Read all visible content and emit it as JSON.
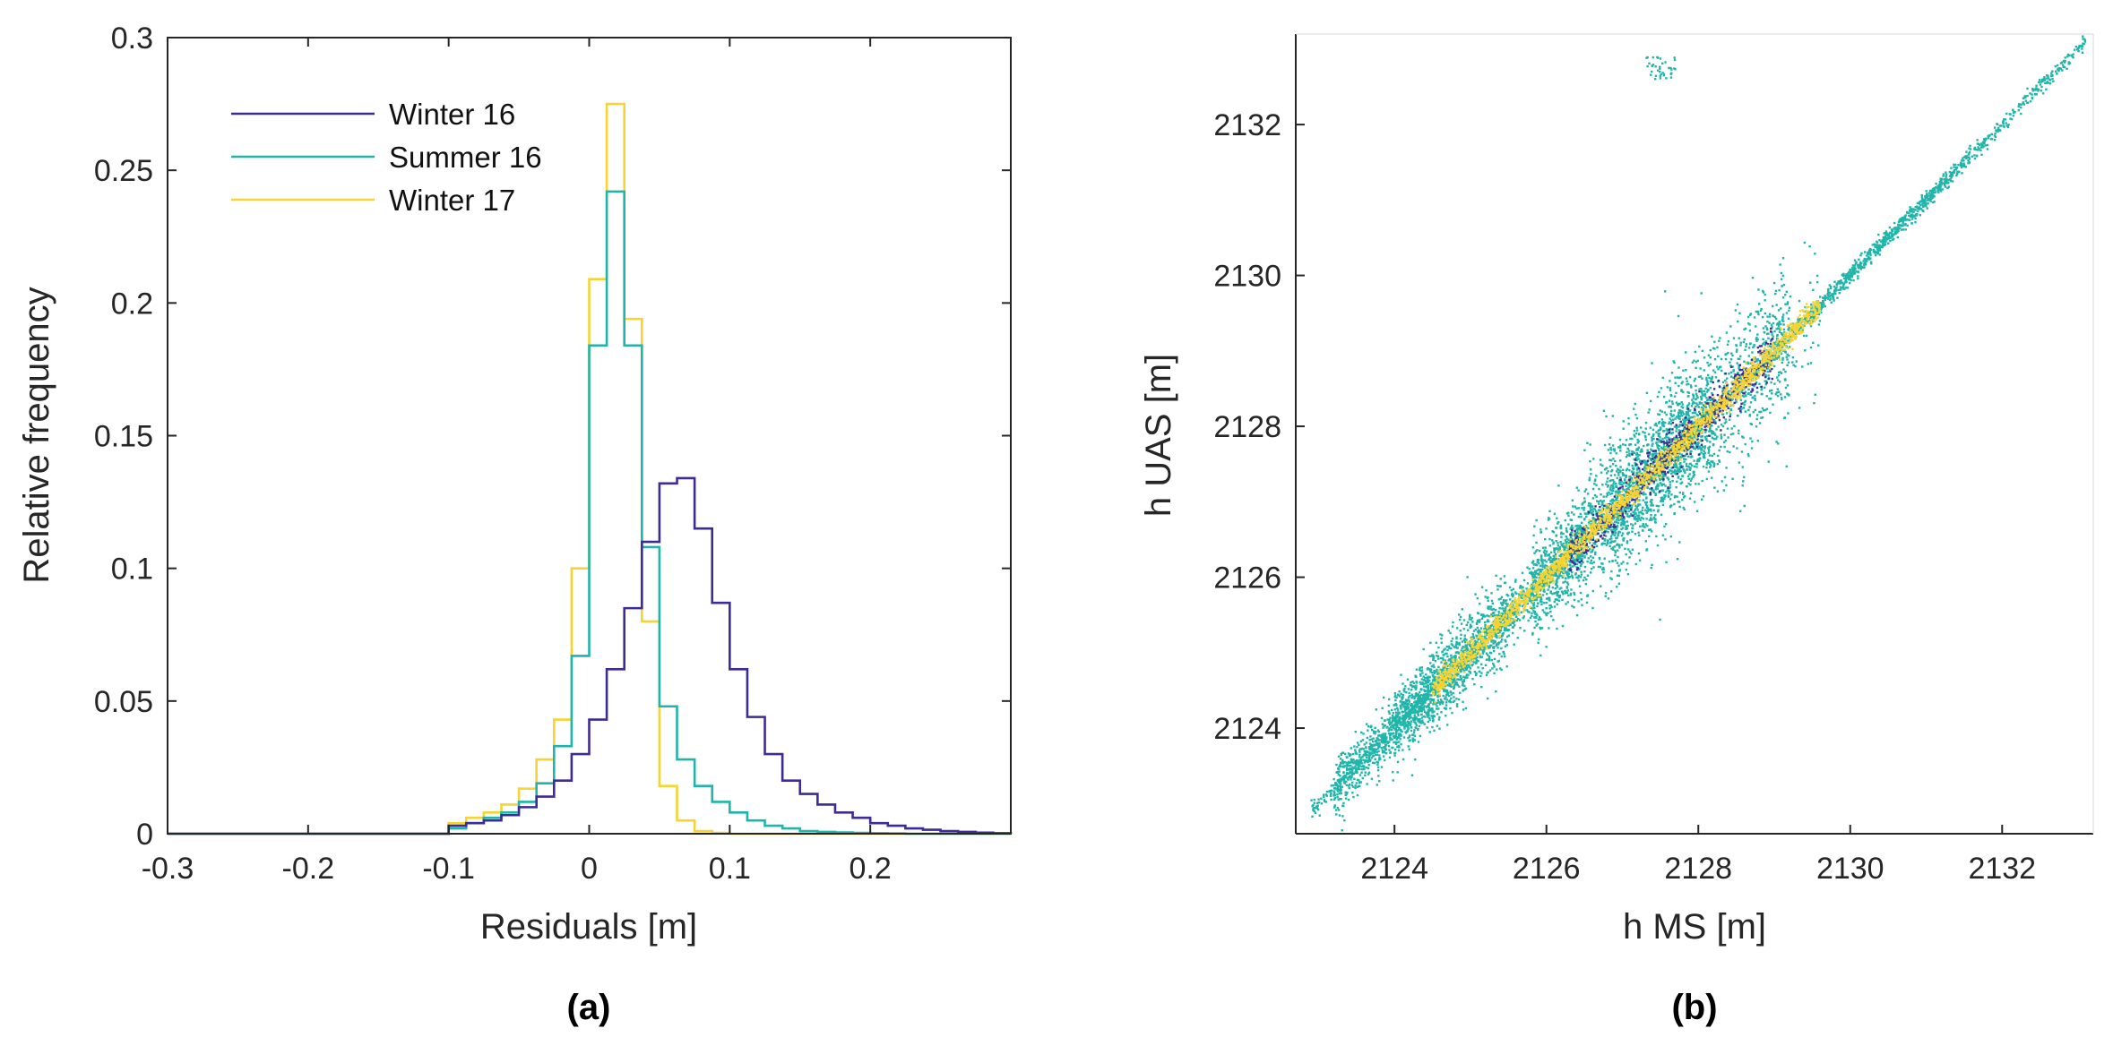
{
  "colors": {
    "winter16": "#3b2c96",
    "summer16": "#21b5aa",
    "winter17": "#f7d333",
    "axis": "#262626"
  },
  "chart_data": [
    {
      "type": "histogram",
      "panel_label": "(a)",
      "xlabel": "Residuals [m]",
      "ylabel": "Relative frequency",
      "xlim": [
        -0.3,
        0.3
      ],
      "ylim": [
        0,
        0.3
      ],
      "xticks": [
        -0.3,
        -0.2,
        -0.1,
        0,
        0.1,
        0.2
      ],
      "xtick_labels": [
        "-0.3",
        "-0.2",
        "-0.1",
        "0",
        "0.1",
        "0.2"
      ],
      "yticks": [
        0,
        0.05,
        0.1,
        0.15,
        0.2,
        0.25,
        0.3
      ],
      "ytick_labels": [
        "0",
        "0.05",
        "0.1",
        "0.15",
        "0.2",
        "0.25",
        "0.3"
      ],
      "legend_location": "top-left",
      "bin_width": 0.0125,
      "bin_start": -0.1,
      "series": [
        {
          "name": "Winter 16",
          "color_key": "winter16",
          "values": [
            0.003,
            0.004,
            0.005,
            0.007,
            0.01,
            0.014,
            0.02,
            0.03,
            0.043,
            0.062,
            0.085,
            0.11,
            0.132,
            0.134,
            0.115,
            0.087,
            0.062,
            0.044,
            0.03,
            0.02,
            0.015,
            0.011,
            0.008,
            0.006,
            0.004,
            0.003,
            0.002,
            0.0015,
            0.001,
            0.0007,
            0.0004,
            0.0002
          ]
        },
        {
          "name": "Summer 16",
          "color_key": "summer16",
          "values": [
            0.002,
            0.004,
            0.006,
            0.008,
            0.012,
            0.019,
            0.033,
            0.067,
            0.184,
            0.242,
            0.184,
            0.108,
            0.048,
            0.028,
            0.018,
            0.012,
            0.008,
            0.005,
            0.003,
            0.002,
            0.001,
            0.0007,
            0.0005,
            0.0003,
            0.0002,
            0.0001,
            0,
            0,
            0,
            0,
            0,
            0
          ]
        },
        {
          "name": "Winter 17",
          "color_key": "winter17",
          "values": [
            0.004,
            0.006,
            0.008,
            0.011,
            0.017,
            0.028,
            0.043,
            0.1,
            0.209,
            0.275,
            0.194,
            0.08,
            0.018,
            0.005,
            0.001,
            0.0003,
            0,
            0,
            0,
            0,
            0,
            0,
            0,
            0,
            0,
            0,
            0,
            0,
            0,
            0,
            0,
            0
          ]
        }
      ]
    },
    {
      "type": "scatter",
      "panel_label": "(b)",
      "xlabel": "h MS [m]",
      "ylabel": "h UAS [m]",
      "xlim": [
        2122.7,
        2133.2
      ],
      "ylim": [
        2122.6,
        2133.2
      ],
      "xticks": [
        2124,
        2126,
        2128,
        2130,
        2132
      ],
      "xtick_labels": [
        "2124",
        "2126",
        "2128",
        "2130",
        "2132"
      ],
      "yticks": [
        2124,
        2126,
        2128,
        2130,
        2132
      ],
      "ytick_labels": [
        "2124",
        "2126",
        "2128",
        "2130",
        "2132"
      ],
      "series_order": [
        "Summer 16",
        "Winter 16",
        "Winter 17"
      ],
      "clusters": [
        {
          "series": "Summer 16",
          "x_range": [
            2122.9,
            2133.1
          ],
          "spread": 0.1,
          "n": 1400
        },
        {
          "series": "Summer 16",
          "x_range": [
            2123.2,
            2126.5
          ],
          "spread": 0.4,
          "n": 1600
        },
        {
          "series": "Summer 16",
          "x_range": [
            2124.0,
            2125.5
          ],
          "spread": 0.55,
          "n": 700
        },
        {
          "series": "Summer 16",
          "x_range": [
            2125.8,
            2128.2
          ],
          "spread": 0.75,
          "n": 1500
        },
        {
          "series": "Summer 16",
          "x_range": [
            2126.8,
            2129.2
          ],
          "spread": 0.85,
          "n": 1100
        },
        {
          "series": "Summer 16",
          "x_range": [
            2128.5,
            2131.6
          ],
          "spread": 0.12,
          "n": 500
        },
        {
          "series": "Summer 16",
          "x_range": [
            2126.5,
            2129.6
          ],
          "spread": 1.4,
          "n": 300
        },
        {
          "series": "Summer 16",
          "x_range": [
            2127.3,
            2127.7
          ],
          "y_range": [
            2132.6,
            2132.9
          ],
          "n": 40
        },
        {
          "series": "Winter 16",
          "x_range": [
            2126.3,
            2129.0
          ],
          "spread": 0.3,
          "n": 700
        },
        {
          "series": "Winter 17",
          "x_range": [
            2124.5,
            2129.6
          ],
          "spread": 0.15,
          "n": 1800
        }
      ]
    }
  ],
  "legend": {
    "items": [
      "Winter 16",
      "Summer 16",
      "Winter 17"
    ]
  }
}
